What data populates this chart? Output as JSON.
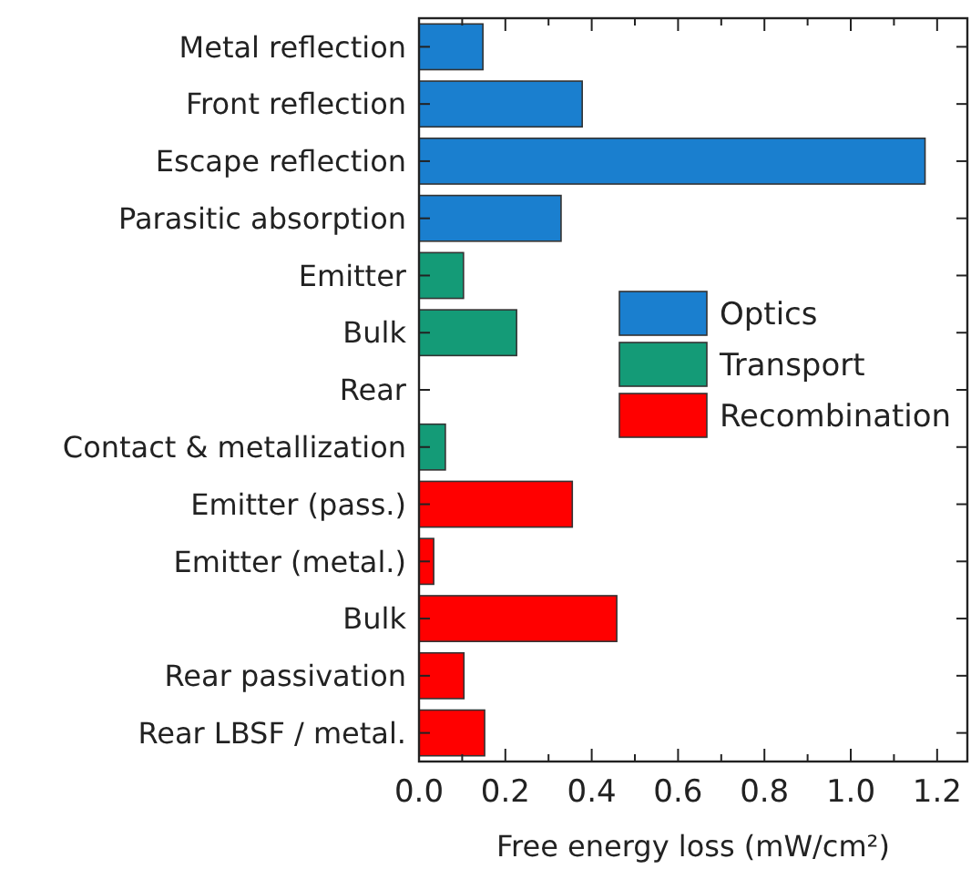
{
  "chart_data": {
    "type": "bar",
    "orientation": "horizontal",
    "xlabel": "Free energy loss (mW/cm²)",
    "categories": [
      "Metal reflection",
      "Front reflection",
      "Escape reflection",
      "Parasitic absorption",
      "Emitter",
      "Bulk",
      "Rear",
      "Contact & metallization",
      "Emitter (pass.)",
      "Emitter (metal.)",
      "Bulk",
      "Rear passivation",
      "Rear LBSF / metal."
    ],
    "series": [
      {
        "name": "Optics",
        "color": "#1a7fcf",
        "values": [
          0.148,
          0.378,
          1.172,
          0.329,
          null,
          null,
          null,
          null,
          null,
          null,
          null,
          null,
          null
        ]
      },
      {
        "name": "Transport",
        "color": "#149b77",
        "values": [
          null,
          null,
          null,
          null,
          0.103,
          0.226,
          0,
          0.061,
          null,
          null,
          null,
          null,
          null
        ]
      },
      {
        "name": "Recombination",
        "color": "#ff0000",
        "values": [
          null,
          null,
          null,
          null,
          null,
          null,
          null,
          null,
          0.355,
          0.034,
          0.458,
          0.104,
          0.152
        ]
      }
    ],
    "xlim": [
      0,
      1.27
    ],
    "xticks": [
      {
        "value": 0,
        "label": "0.0"
      },
      {
        "value": 0.1,
        "label": null
      },
      0.2,
      {
        "value": 0.3,
        "label": null
      },
      0.4,
      {
        "value": 0.5,
        "label": null
      },
      0.6,
      {
        "value": 0.7,
        "label": null
      },
      0.8,
      {
        "value": 0.9,
        "label": null
      },
      {
        "value": 1,
        "label": "1.0"
      },
      {
        "value": 1.1,
        "label": null
      },
      1.2
    ],
    "legend": "right",
    "grid": false
  }
}
